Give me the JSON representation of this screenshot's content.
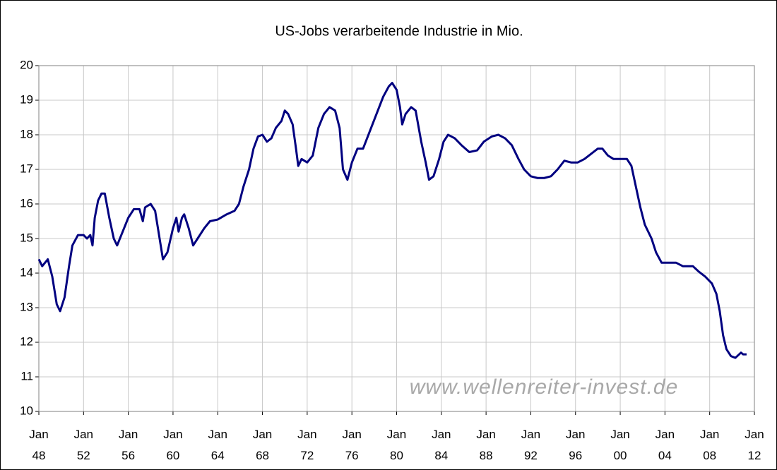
{
  "chart_data": {
    "type": "line",
    "title": "US-Jobs verarbeitende Industrie in Mio.",
    "watermark": "www.wellenreiter-invest.de",
    "grid": true,
    "color": "#000080",
    "xlim": [
      1948,
      2012
    ],
    "ylim": [
      10,
      20
    ],
    "yticks": [
      10,
      11,
      12,
      13,
      14,
      15,
      16,
      17,
      18,
      19,
      20
    ],
    "xticks": [
      {
        "value": 1948,
        "label": "Jan\n48"
      },
      {
        "value": 1952,
        "label": "Jan\n52"
      },
      {
        "value": 1956,
        "label": "Jan\n56"
      },
      {
        "value": 1960,
        "label": "Jan\n60"
      },
      {
        "value": 1964,
        "label": "Jan\n64"
      },
      {
        "value": 1968,
        "label": "Jan\n68"
      },
      {
        "value": 1972,
        "label": "Jan\n72"
      },
      {
        "value": 1976,
        "label": "Jan\n76"
      },
      {
        "value": 1980,
        "label": "Jan\n80"
      },
      {
        "value": 1984,
        "label": "Jan\n84"
      },
      {
        "value": 1988,
        "label": "Jan\n88"
      },
      {
        "value": 1992,
        "label": "Jan\n92"
      },
      {
        "value": 1996,
        "label": "Jan\n96"
      },
      {
        "value": 2000,
        "label": "Jan\n00"
      },
      {
        "value": 2004,
        "label": "Jan\n04"
      },
      {
        "value": 2008,
        "label": "Jan\n08"
      },
      {
        "value": 2012,
        "label": "Jan\n12"
      }
    ],
    "x": [
      1948.0,
      1948.3,
      1948.8,
      1949.2,
      1949.6,
      1949.9,
      1950.3,
      1950.7,
      1951.0,
      1951.5,
      1952.0,
      1952.3,
      1952.6,
      1952.8,
      1953.0,
      1953.3,
      1953.6,
      1953.9,
      1954.3,
      1954.7,
      1955.0,
      1955.5,
      1956.0,
      1956.5,
      1957.0,
      1957.3,
      1957.5,
      1958.0,
      1958.4,
      1958.8,
      1959.1,
      1959.5,
      1960.0,
      1960.3,
      1960.5,
      1960.8,
      1961.0,
      1961.4,
      1961.8,
      1962.2,
      1962.8,
      1963.3,
      1964.0,
      1964.8,
      1965.5,
      1965.9,
      1966.3,
      1966.8,
      1967.2,
      1967.6,
      1968.0,
      1968.4,
      1968.8,
      1969.2,
      1969.7,
      1970.0,
      1970.3,
      1970.7,
      1971.0,
      1971.2,
      1971.5,
      1972.0,
      1972.5,
      1973.0,
      1973.5,
      1974.0,
      1974.5,
      1974.9,
      1975.2,
      1975.6,
      1976.0,
      1976.5,
      1977.0,
      1977.6,
      1978.2,
      1978.8,
      1979.3,
      1979.6,
      1980.0,
      1980.3,
      1980.5,
      1980.8,
      1981.3,
      1981.7,
      1982.2,
      1982.6,
      1982.9,
      1983.3,
      1983.8,
      1984.2,
      1984.6,
      1985.2,
      1985.8,
      1986.5,
      1987.2,
      1987.8,
      1988.5,
      1989.1,
      1989.7,
      1990.3,
      1990.9,
      1991.4,
      1992.0,
      1992.6,
      1993.2,
      1993.8,
      1994.4,
      1995.0,
      1995.6,
      1996.2,
      1996.8,
      1997.4,
      1998.0,
      1998.4,
      1998.9,
      1999.4,
      2000.0,
      2000.6,
      2001.0,
      2001.4,
      2001.8,
      2002.2,
      2002.8,
      2003.2,
      2003.7,
      2004.2,
      2005.0,
      2005.6,
      2006.5,
      2007.0,
      2007.6,
      2008.2,
      2008.6,
      2008.9,
      2009.2,
      2009.5,
      2009.9,
      2010.3,
      2010.8,
      2011.0,
      2011.3
    ],
    "values": [
      14.4,
      14.2,
      14.4,
      13.9,
      13.1,
      12.9,
      13.3,
      14.2,
      14.8,
      15.1,
      15.1,
      15.0,
      15.1,
      14.8,
      15.6,
      16.1,
      16.3,
      16.3,
      15.6,
      15.0,
      14.8,
      15.2,
      15.6,
      15.85,
      15.85,
      15.5,
      15.9,
      16.0,
      15.8,
      15.0,
      14.4,
      14.6,
      15.3,
      15.6,
      15.2,
      15.6,
      15.7,
      15.3,
      14.8,
      15.0,
      15.3,
      15.5,
      15.55,
      15.7,
      15.8,
      16.0,
      16.5,
      17.0,
      17.6,
      17.95,
      18.0,
      17.8,
      17.9,
      18.2,
      18.4,
      18.7,
      18.6,
      18.3,
      17.6,
      17.1,
      17.3,
      17.2,
      17.4,
      18.2,
      18.6,
      18.8,
      18.7,
      18.2,
      17.0,
      16.7,
      17.2,
      17.6,
      17.6,
      18.1,
      18.6,
      19.1,
      19.4,
      19.5,
      19.3,
      18.8,
      18.3,
      18.6,
      18.8,
      18.7,
      17.8,
      17.2,
      16.7,
      16.8,
      17.3,
      17.8,
      18.0,
      17.9,
      17.7,
      17.5,
      17.55,
      17.8,
      17.95,
      18.0,
      17.9,
      17.7,
      17.3,
      17.0,
      16.8,
      16.75,
      16.75,
      16.8,
      17.0,
      17.25,
      17.2,
      17.2,
      17.3,
      17.45,
      17.6,
      17.6,
      17.4,
      17.3,
      17.3,
      17.3,
      17.1,
      16.5,
      15.9,
      15.4,
      15.0,
      14.6,
      14.3,
      14.3,
      14.3,
      14.2,
      14.2,
      14.05,
      13.9,
      13.7,
      13.4,
      12.9,
      12.2,
      11.8,
      11.6,
      11.55,
      11.7,
      11.65,
      11.65
    ]
  }
}
